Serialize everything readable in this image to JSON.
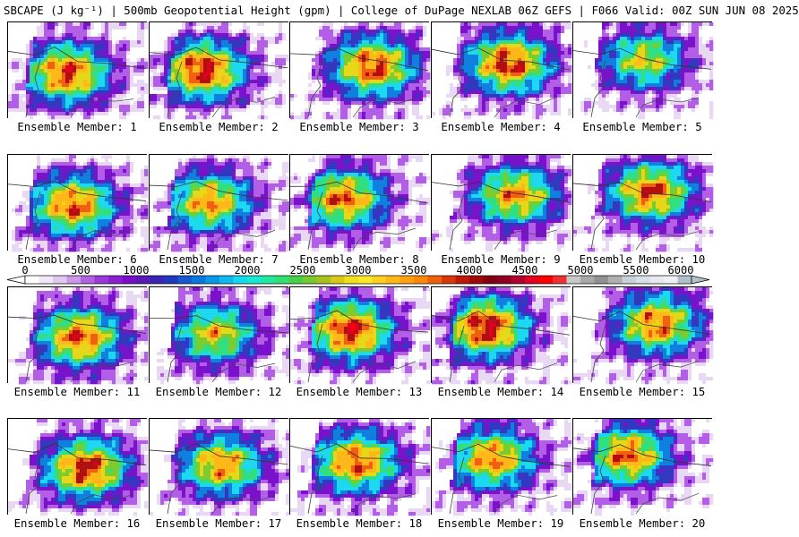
{
  "title": "SBCAPE (J kg⁻¹) | 500mb Geopotential Height (gpm) | College of DuPage NEXLAB 06Z GEFS | F066 Valid: 00Z SUN JUN 08 2025",
  "panels": [
    {
      "label": "Ensemble Member: 1",
      "peak": 4400
    },
    {
      "label": "Ensemble Member: 2",
      "peak": 4600
    },
    {
      "label": "Ensemble Member: 3",
      "peak": 4400
    },
    {
      "label": "Ensemble Member: 4",
      "peak": 4500
    },
    {
      "label": "Ensemble Member: 5",
      "peak": 3400
    },
    {
      "label": "Ensemble Member: 6",
      "peak": 4300
    },
    {
      "label": "Ensemble Member: 7",
      "peak": 4000
    },
    {
      "label": "Ensemble Member: 8",
      "peak": 4200
    },
    {
      "label": "Ensemble Member: 9",
      "peak": 4000
    },
    {
      "label": "Ensemble Member: 10",
      "peak": 4300
    },
    {
      "label": "Ensemble Member: 11",
      "peak": 4300
    },
    {
      "label": "Ensemble Member: 12",
      "peak": 3600
    },
    {
      "label": "Ensemble Member: 13",
      "peak": 4600
    },
    {
      "label": "Ensemble Member: 14",
      "peak": 4700
    },
    {
      "label": "Ensemble Member: 15",
      "peak": 4200
    },
    {
      "label": "Ensemble Member: 16",
      "peak": 4500
    },
    {
      "label": "Ensemble Member: 17",
      "peak": 4000
    },
    {
      "label": "Ensemble Member: 18",
      "peak": 4300
    },
    {
      "label": "Ensemble Member: 19",
      "peak": 4100
    },
    {
      "label": "Ensemble Member: 20",
      "peak": 4200
    }
  ],
  "colorbar": {
    "min": 0,
    "max": 6000,
    "ticks": [
      "0",
      "500",
      "1000",
      "1500",
      "2000",
      "2500",
      "3000",
      "3500",
      "4000",
      "4500",
      "5000",
      "5500",
      "6000"
    ],
    "colors": [
      "#ffffff",
      "#f0e8f8",
      "#e0c8f0",
      "#cc99e8",
      "#b060e0",
      "#9a38d8",
      "#8a1fd0",
      "#7a0fc8",
      "#5a1ab8",
      "#3a24b0",
      "#2038c0",
      "#1858d0",
      "#0878e0",
      "#0898e8",
      "#10b8f0",
      "#18d8f0",
      "#18e8d0",
      "#20e8a0",
      "#30e070",
      "#48d048",
      "#78c830",
      "#a8c020",
      "#d8c818",
      "#f0e020",
      "#ffe828",
      "#ffd020",
      "#ffb818",
      "#ffa010",
      "#ff8808",
      "#f06008",
      "#d83808",
      "#c01808",
      "#a00808",
      "#800010",
      "#900020",
      "#b00030",
      "#e00020",
      "#ff0000",
      "#f03030",
      "#c8c8c8",
      "#a8a8a8",
      "#909090",
      "#b0b0b0",
      "#c8d0d8",
      "#d8e0e8",
      "#e8e8f0",
      "#f0f0f8",
      "#b0c0c8"
    ]
  }
}
